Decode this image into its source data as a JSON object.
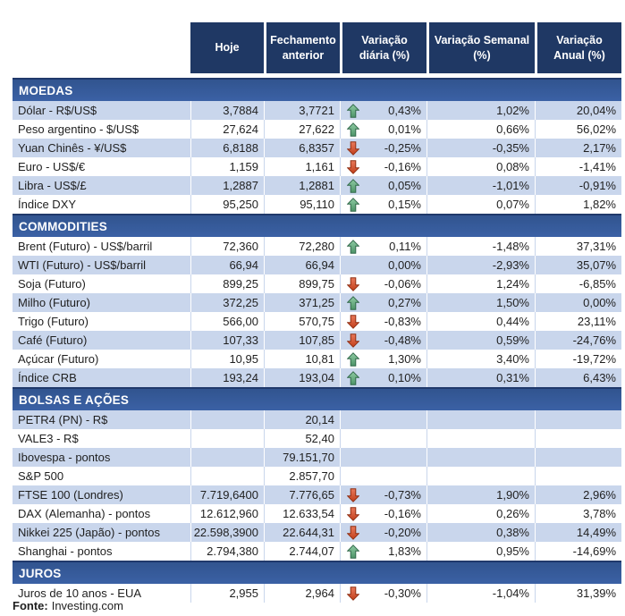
{
  "header": {
    "columns": [
      "Hoje",
      "Fechamento anterior",
      "Variação diária (%)",
      "Variação Semanal (%)",
      "Variação Anual (%)"
    ]
  },
  "colors": {
    "header_navy": "#1F3864",
    "section_blue": "#36589B",
    "row_stripe_blue": "#C9D6EC",
    "arrow_up_green": "#4D9468",
    "arrow_down_red": "#C23F1B"
  },
  "icons": {
    "up": "arrow-up-icon",
    "down": "arrow-down-icon"
  },
  "sections": [
    {
      "title": "MOEDAS",
      "rows": [
        {
          "label": "Dólar - R$/US$",
          "hoje": "3,7884",
          "fechamento": "3,7721",
          "arrow": "up",
          "diaria": "0,43%",
          "semanal": "1,02%",
          "anual": "20,04%"
        },
        {
          "label": "Peso argentino - $/US$",
          "hoje": "27,624",
          "fechamento": "27,622",
          "arrow": "up",
          "diaria": "0,01%",
          "semanal": "0,66%",
          "anual": "56,02%"
        },
        {
          "label": "Yuan Chinês - ¥/US$",
          "hoje": "6,8188",
          "fechamento": "6,8357",
          "arrow": "down",
          "diaria": "-0,25%",
          "semanal": "-0,35%",
          "anual": "2,17%"
        },
        {
          "label": "Euro - US$/€",
          "hoje": "1,159",
          "fechamento": "1,161",
          "arrow": "down",
          "diaria": "-0,16%",
          "semanal": "0,08%",
          "anual": "-1,41%"
        },
        {
          "label": "Libra - US$/£",
          "hoje": "1,2887",
          "fechamento": "1,2881",
          "arrow": "up",
          "diaria": "0,05%",
          "semanal": "-1,01%",
          "anual": "-0,91%"
        },
        {
          "label": "Índice DXY",
          "hoje": "95,250",
          "fechamento": "95,110",
          "arrow": "up",
          "diaria": "0,15%",
          "semanal": "0,07%",
          "anual": "1,82%"
        }
      ]
    },
    {
      "title": "COMMODITIES",
      "rows": [
        {
          "label": "Brent (Futuro) - US$/barril",
          "hoje": "72,360",
          "fechamento": "72,280",
          "arrow": "up",
          "diaria": "0,11%",
          "semanal": "-1,48%",
          "anual": "37,31%"
        },
        {
          "label": "WTI (Futuro) - US$/barril",
          "hoje": "66,94",
          "fechamento": "66,94",
          "arrow": "none",
          "diaria": "0,00%",
          "semanal": "-2,93%",
          "anual": "35,07%"
        },
        {
          "label": "Soja (Futuro)",
          "hoje": "899,25",
          "fechamento": "899,75",
          "arrow": "down",
          "diaria": "-0,06%",
          "semanal": "1,24%",
          "anual": "-6,85%"
        },
        {
          "label": "Milho (Futuro)",
          "hoje": "372,25",
          "fechamento": "371,25",
          "arrow": "up",
          "diaria": "0,27%",
          "semanal": "1,50%",
          "anual": "0,00%"
        },
        {
          "label": "Trigo (Futuro)",
          "hoje": "566,00",
          "fechamento": "570,75",
          "arrow": "down",
          "diaria": "-0,83%",
          "semanal": "0,44%",
          "anual": "23,11%"
        },
        {
          "label": "Café (Futuro)",
          "hoje": "107,33",
          "fechamento": "107,85",
          "arrow": "down",
          "diaria": "-0,48%",
          "semanal": "0,59%",
          "anual": "-24,76%"
        },
        {
          "label": "Açúcar (Futuro)",
          "hoje": "10,95",
          "fechamento": "10,81",
          "arrow": "up",
          "diaria": "1,30%",
          "semanal": "3,40%",
          "anual": "-19,72%"
        },
        {
          "label": "Índice CRB",
          "hoje": "193,24",
          "fechamento": "193,04",
          "arrow": "up",
          "diaria": "0,10%",
          "semanal": "0,31%",
          "anual": "6,43%"
        }
      ]
    },
    {
      "title": "BOLSAS E AÇÕES",
      "rows": [
        {
          "label": "PETR4 (PN) - R$",
          "hoje": "",
          "fechamento": "20,14",
          "arrow": "none",
          "diaria": "",
          "semanal": "",
          "anual": ""
        },
        {
          "label": "VALE3 - R$",
          "hoje": "",
          "fechamento": "52,40",
          "arrow": "none",
          "diaria": "",
          "semanal": "",
          "anual": ""
        },
        {
          "label": "Ibovespa - pontos",
          "hoje": "",
          "fechamento": "79.151,70",
          "arrow": "none",
          "diaria": "",
          "semanal": "",
          "anual": ""
        },
        {
          "label": "S&P 500",
          "hoje": "",
          "fechamento": "2.857,70",
          "arrow": "none",
          "diaria": "",
          "semanal": "",
          "anual": ""
        },
        {
          "label": "FTSE 100 (Londres)",
          "hoje": "7.719,6400",
          "fechamento": "7.776,65",
          "arrow": "down",
          "diaria": "-0,73%",
          "semanal": "1,90%",
          "anual": "2,96%"
        },
        {
          "label": "DAX (Alemanha) - pontos",
          "hoje": "12.612,960",
          "fechamento": "12.633,54",
          "arrow": "down",
          "diaria": "-0,16%",
          "semanal": "0,26%",
          "anual": "3,78%"
        },
        {
          "label": "Nikkei 225 (Japão) - pontos",
          "hoje": "22.598,3900",
          "fechamento": "22.644,31",
          "arrow": "down",
          "diaria": "-0,20%",
          "semanal": "0,38%",
          "anual": "14,49%"
        },
        {
          "label": "Shanghai - pontos",
          "hoje": "2.794,380",
          "fechamento": "2.744,07",
          "arrow": "up",
          "diaria": "1,83%",
          "semanal": "0,95%",
          "anual": "-14,69%"
        }
      ]
    },
    {
      "title": "JUROS",
      "rows": [
        {
          "label": "Juros de 10 anos - EUA",
          "hoje": "2,955",
          "fechamento": "2,964",
          "arrow": "down",
          "diaria": "-0,30%",
          "semanal": "-1,04%",
          "anual": "31,39%"
        }
      ]
    }
  ],
  "footer": {
    "source_label": "Fonte:",
    "source_value": "Investing.com"
  }
}
